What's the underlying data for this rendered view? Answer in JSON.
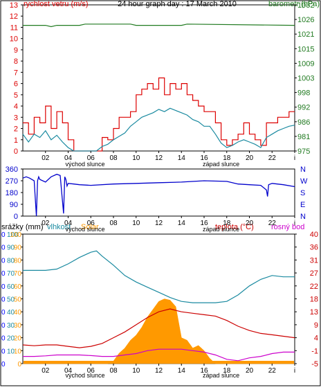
{
  "chart_data": [
    {
      "type": "line",
      "title": "24 hour graph day : 17 March 2010",
      "left_axis_label": "rychlost vetru (m/s)",
      "right_axis_label": "barometr (hPa)",
      "x_tick_labels": [
        "02",
        "04",
        "06",
        "08",
        "10",
        "12",
        "14",
        "16",
        "18",
        "20",
        "22",
        "i"
      ],
      "x_annotations": [
        "východ slunce",
        "západ slunce"
      ],
      "left_ylim": [
        0,
        13
      ],
      "left_ticks": [
        "0",
        "1",
        "2",
        "3",
        "4",
        "5",
        "6",
        "7",
        "8",
        "9",
        "10",
        "11",
        "12",
        "13"
      ],
      "right_ticks": [
        "975",
        "981",
        "986",
        "992",
        "998",
        "1003",
        "1009",
        "1015",
        "1021",
        "1026",
        "1032"
      ],
      "right_ylim": [
        975,
        1032
      ],
      "colors": {
        "gust": "#dd0000",
        "wind": "#1a8aa0",
        "pressure": "#207a20",
        "left_label": "#dd0000",
        "right_label": "#207a20"
      },
      "series": [
        {
          "name": "barometr",
          "x": [
            0,
            2,
            2.5,
            3,
            3.5,
            5,
            5.5,
            9.5,
            10,
            14,
            14.5,
            24
          ],
          "values": [
            1024,
            1024,
            1023.5,
            1024,
            1024,
            1024,
            1024.5,
            1024.5,
            1024,
            1024,
            1024.5,
            1024
          ]
        },
        {
          "name": "gust",
          "x": [
            0,
            0.5,
            1,
            1.5,
            2,
            2.5,
            3,
            3.5,
            4,
            4.5,
            5,
            5.5,
            6,
            6.5,
            7,
            7.5,
            8,
            8.5,
            9,
            9.5,
            10,
            10.5,
            11,
            11.5,
            12,
            12.5,
            13,
            13.5,
            14,
            14.5,
            15,
            15.5,
            16,
            16.5,
            17,
            17.5,
            18,
            18.5,
            19,
            19.5,
            20,
            20.5,
            21,
            21.5,
            22,
            22.5,
            23,
            23.5,
            24
          ],
          "values": [
            2.5,
            1.5,
            3,
            2.5,
            4,
            2,
            3.5,
            2.5,
            1,
            0,
            0,
            0,
            0,
            0,
            1.2,
            1,
            2,
            3,
            3,
            3.5,
            5,
            5.5,
            6,
            5.5,
            6.5,
            5,
            6,
            5.5,
            6,
            5,
            4.5,
            4,
            3.5,
            3.5,
            2.5,
            1,
            0.5,
            1,
            1.5,
            2.5,
            1.5,
            1,
            0.5,
            2.5,
            2.5,
            3,
            3,
            3.5,
            3.5
          ]
        },
        {
          "name": "wind",
          "x": [
            0,
            0.5,
            1,
            1.5,
            2,
            2.5,
            3,
            3.5,
            4,
            4.5,
            5,
            5.5,
            6,
            6.5,
            7,
            7.5,
            8,
            8.5,
            9,
            9.5,
            10,
            10.5,
            11,
            11.5,
            12,
            12.5,
            13,
            13.5,
            14,
            14.5,
            15,
            15.5,
            16,
            16.5,
            17,
            17.5,
            18,
            18.5,
            19,
            19.5,
            20,
            20.5,
            21,
            21.5,
            22,
            22.5,
            23,
            23.5,
            24
          ],
          "values": [
            1.5,
            0.8,
            1.5,
            1.2,
            1.8,
            1,
            1.4,
            0.8,
            0.3,
            0,
            0,
            0,
            0,
            0,
            0.4,
            0.6,
            1,
            1.3,
            1.6,
            2.2,
            2.6,
            3,
            3.2,
            3.4,
            3.7,
            3.5,
            3.8,
            3.6,
            3.4,
            3.2,
            2.8,
            2.6,
            2.2,
            2.2,
            1.5,
            0.7,
            0.3,
            0.5,
            0.8,
            1,
            0.8,
            0.6,
            0.3,
            1.2,
            1.5,
            1.8,
            2,
            2.2,
            2.3
          ]
        }
      ]
    },
    {
      "type": "line",
      "title": "",
      "left_ticks": [
        "0",
        "90",
        "180",
        "270",
        "360"
      ],
      "right_ticks": [
        "N",
        "W",
        "S",
        "E",
        "N"
      ],
      "x_tick_labels": [
        "02",
        "04",
        "06",
        "08",
        "10",
        "12",
        "14",
        "16",
        "18",
        "20",
        "22",
        "i"
      ],
      "x_annotations": [
        "východ slunce",
        "západ slunce"
      ],
      "ylim": [
        0,
        360
      ],
      "colors": {
        "direction": "#0000cc"
      },
      "series": [
        {
          "name": "direction",
          "x": [
            0,
            0.3,
            0.6,
            1,
            1.2,
            1.3,
            1.4,
            1.5,
            2,
            2.5,
            3,
            3.3,
            3.6,
            3.7,
            3.8,
            3.9,
            4,
            4.5,
            5,
            6,
            8,
            10,
            12,
            14,
            16,
            18,
            19,
            20,
            21,
            21.5,
            21.6,
            21.7,
            22,
            23,
            24
          ],
          "values": [
            290,
            300,
            290,
            270,
            0,
            270,
            300,
            280,
            260,
            300,
            320,
            310,
            20,
            300,
            280,
            230,
            250,
            245,
            240,
            235,
            245,
            250,
            255,
            260,
            270,
            265,
            245,
            240,
            235,
            200,
            150,
            240,
            250,
            240,
            225
          ]
        }
      ]
    },
    {
      "type": "area",
      "title": "",
      "labels": [
        "srážky (mm)",
        "vlhkost",
        "Solar",
        "teplota (°C)",
        "rosný bod"
      ],
      "ticks_rain": [
        "0",
        "0",
        "0",
        "0",
        "0",
        "0",
        "0",
        "0",
        "0",
        "0",
        "0"
      ],
      "ticks_humidity": [
        "10",
        "20",
        "30",
        "40",
        "50",
        "60",
        "70",
        "80",
        "90",
        "100"
      ],
      "ticks_solar": [
        "0",
        "10",
        "20",
        "30",
        "40",
        "50",
        "60",
        "70",
        "80",
        "90",
        "100"
      ],
      "ticks_temp": [
        "-5",
        "-1",
        "4",
        "9",
        "13",
        "18",
        "22",
        "27",
        "31",
        "36",
        "40"
      ],
      "x_tick_labels": [
        "02",
        "04",
        "06",
        "08",
        "10",
        "12",
        "14",
        "16",
        "18",
        "20",
        "22",
        "i"
      ],
      "x_annotations": [
        "východ slunce",
        "západ slunce"
      ],
      "ylim": [
        0,
        100
      ],
      "colors": {
        "rain": "#0000ff",
        "humidity": "#1a8aa0",
        "solar": "#ff9900",
        "temperature": "#cc0000",
        "dewpoint": "#cc00cc",
        "temp_label": "#cc0000",
        "dew_label": "#cc00cc"
      },
      "series": [
        {
          "name": "vlhkost",
          "x": [
            0,
            2,
            3,
            4,
            5,
            6,
            6.5,
            7,
            8,
            9,
            10,
            11,
            12,
            13,
            14,
            15,
            16,
            17,
            18,
            19,
            20,
            21,
            22,
            23,
            24
          ],
          "values": [
            72,
            72,
            73,
            77,
            82,
            86,
            87,
            83,
            76,
            68,
            63,
            59,
            55,
            51,
            48,
            47,
            47,
            47,
            48,
            53,
            60,
            65,
            68,
            67,
            67
          ]
        },
        {
          "name": "teplota",
          "x": [
            0,
            1,
            2,
            3,
            4,
            5,
            6,
            7,
            8,
            9,
            10,
            11,
            12,
            13,
            14,
            15,
            16,
            17,
            18,
            19,
            20,
            21,
            22,
            23,
            24
          ],
          "values": [
            1.5,
            1.2,
            1.5,
            1.5,
            1,
            0.5,
            1,
            2,
            4,
            6,
            8.5,
            11,
            13,
            14,
            13,
            12.5,
            12,
            11.5,
            10,
            8,
            6.5,
            5.5,
            5,
            4.5,
            4
          ]
        },
        {
          "name": "rosný bod",
          "x": [
            0,
            1,
            2,
            3,
            4,
            5,
            6,
            7,
            8,
            9,
            10,
            11,
            12,
            13,
            14,
            15,
            16,
            17,
            18,
            19,
            20,
            21,
            22,
            23,
            24
          ],
          "values": [
            -2.5,
            -2.5,
            -2.3,
            -2,
            -2,
            -2,
            -2.2,
            -2.5,
            -2.5,
            -2,
            -1.5,
            -0.5,
            0,
            0,
            0,
            -0.5,
            -1,
            -2,
            -3.5,
            -4,
            -3,
            -2.5,
            -1.5,
            -1,
            -1
          ]
        },
        {
          "name": "Solar",
          "x": [
            0,
            7,
            7.5,
            8,
            8.5,
            9,
            9.5,
            10,
            10.5,
            11,
            11.5,
            12,
            12.5,
            13,
            13.5,
            14,
            14.5,
            15,
            15.5,
            16,
            16.5,
            17,
            24
          ],
          "values": [
            0,
            0,
            0,
            2,
            8,
            12,
            18,
            22,
            28,
            36,
            42,
            48,
            50,
            49,
            44,
            20,
            18,
            12,
            14,
            10,
            4,
            0,
            0
          ]
        }
      ]
    }
  ]
}
